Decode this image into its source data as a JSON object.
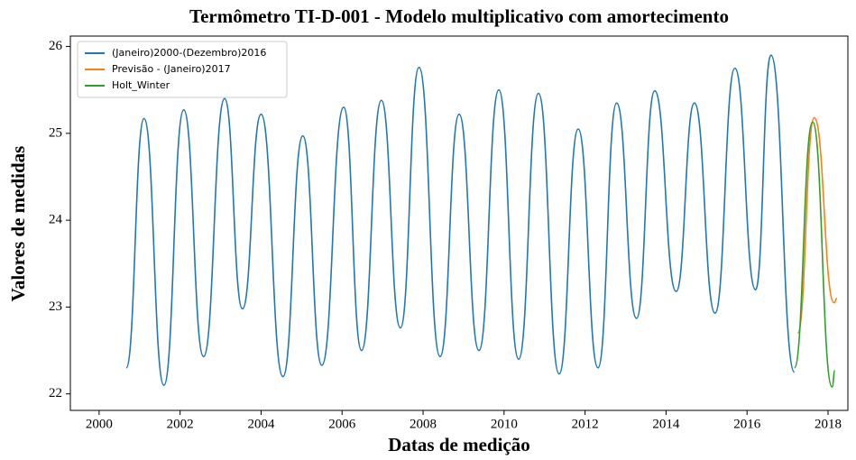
{
  "chart_data": {
    "type": "line",
    "title": "Termômetro TI-D-001 - Modelo multiplicativo com amortecimento",
    "x_label": "Datas de medição",
    "y_label": "Valores de medidas",
    "xlim": [
      1999.29,
      2018.49
    ],
    "xticks": [
      2000,
      2002,
      2004,
      2006,
      2008,
      2010,
      2012,
      2014,
      2016,
      2018
    ],
    "ylim": [
      21.81,
      26.12
    ],
    "yticks": [
      22,
      23,
      24,
      25,
      26
    ],
    "legend": "upper left",
    "series": [
      {
        "name": "(Janeiro)2000-(Dezembro)2016",
        "color": "#1f77b4",
        "x": [
          2000.67,
          2001.11,
          2001.6,
          2002.09,
          2002.58,
          2003.1,
          2003.54,
          2004.0,
          2004.54,
          2005.03,
          2005.5,
          2006.04,
          2006.48,
          2006.97,
          2007.44,
          2007.9,
          2008.42,
          2008.89,
          2009.38,
          2009.87,
          2010.36,
          2010.85,
          2011.36,
          2011.83,
          2012.32,
          2012.78,
          2013.27,
          2013.72,
          2014.25,
          2014.7,
          2015.21,
          2015.7,
          2016.21,
          2016.59,
          2017.17
        ],
        "values": [
          22.3,
          25.17,
          22.1,
          25.27,
          22.43,
          25.4,
          22.98,
          25.22,
          22.2,
          24.97,
          22.33,
          25.3,
          22.5,
          25.38,
          22.76,
          25.76,
          22.43,
          25.22,
          22.5,
          25.5,
          22.4,
          25.46,
          22.23,
          25.05,
          22.3,
          25.35,
          22.87,
          25.49,
          23.18,
          25.35,
          22.93,
          25.75,
          23.2,
          25.9,
          22.25
        ]
      },
      {
        "name": "Previsão - (Janeiro)2017",
        "color": "#ff7f0e",
        "x": [
          2017.25,
          2017.66,
          2018.15,
          2018.22
        ],
        "values": [
          22.7,
          25.18,
          23.05,
          23.1
        ]
      },
      {
        "name": "Holt_Winter",
        "color": "#2ca02c",
        "x": [
          2017.17,
          2017.62,
          2018.1,
          2018.17
        ],
        "values": [
          22.3,
          25.13,
          22.08,
          22.27
        ]
      }
    ]
  }
}
